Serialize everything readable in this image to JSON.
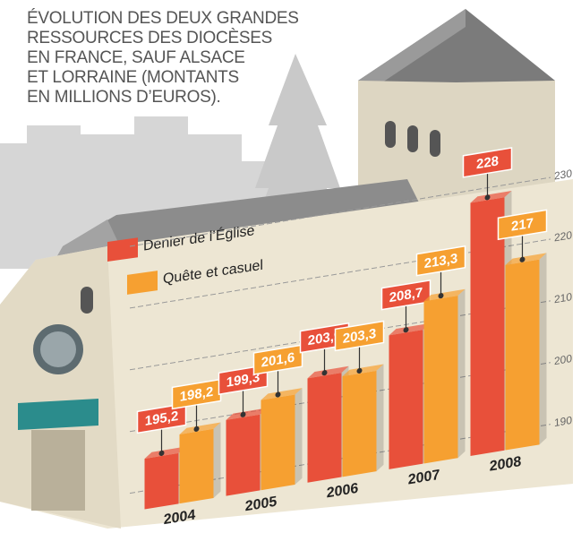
{
  "chart_data": {
    "type": "bar",
    "title": "ÉVOLUTION DES DEUX GRANDES\nRESSOURCES DES DIOCÈSES\nEN FRANCE, SAUF ALSACE\nET LORRAINE (MONTANTS\nEN MILLIONS D’EUROS).",
    "categories": [
      "2004",
      "2005",
      "2006",
      "2007",
      "2008"
    ],
    "series": [
      {
        "name": "Denier de l’Église",
        "color": "#e8503a",
        "values": [
          195.2,
          199.3,
          203.9,
          208.7,
          228
        ],
        "value_labels": [
          "195,2",
          "199,3",
          "203,9",
          "208,7",
          "228"
        ]
      },
      {
        "name": "Quête et casuel",
        "color": "#f6a031",
        "values": [
          198.2,
          201.6,
          203.3,
          213.3,
          217
        ],
        "value_labels": [
          "198,2",
          "201,6",
          "203,3",
          "213,3",
          "217"
        ]
      }
    ],
    "ylim": [
      187,
      232
    ],
    "yticks": [
      190,
      200,
      210,
      220,
      230
    ],
    "grid": true
  }
}
